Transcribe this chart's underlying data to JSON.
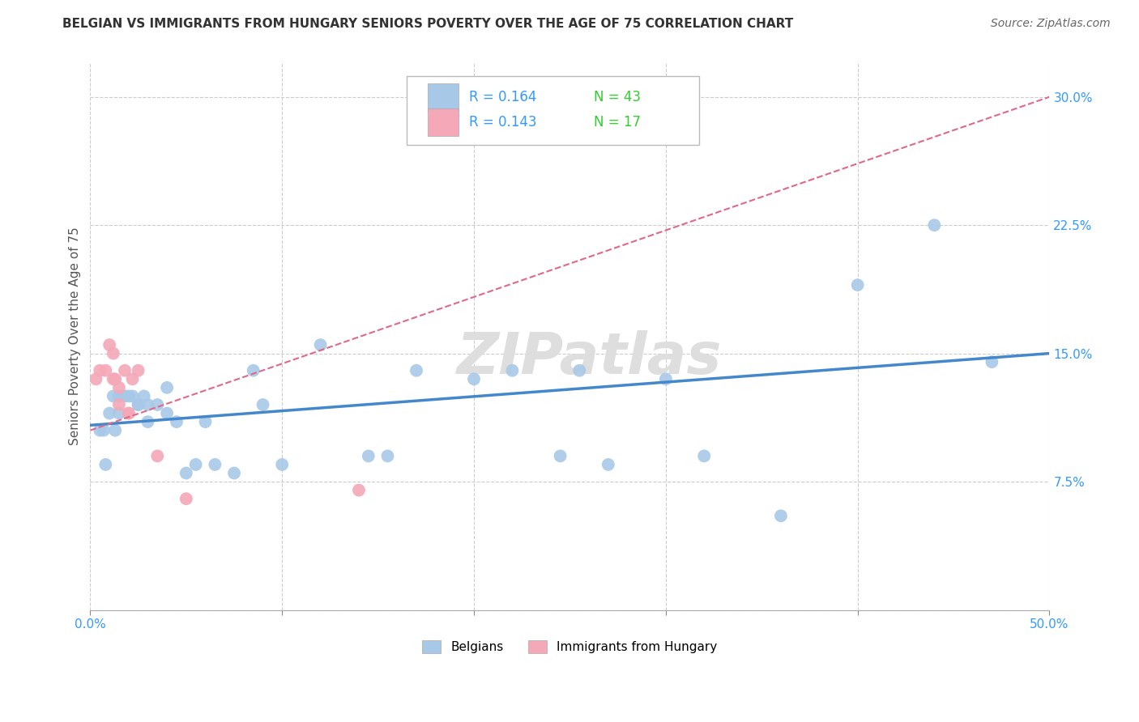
{
  "title": "BELGIAN VS IMMIGRANTS FROM HUNGARY SENIORS POVERTY OVER THE AGE OF 75 CORRELATION CHART",
  "source": "Source: ZipAtlas.com",
  "ylabel": "Seniors Poverty Over the Age of 75",
  "xlim": [
    0.0,
    0.5
  ],
  "ylim": [
    0.0,
    0.32
  ],
  "yticks": [
    0.0,
    0.075,
    0.15,
    0.225,
    0.3
  ],
  "ytick_labels": [
    "",
    "7.5%",
    "15.0%",
    "22.5%",
    "30.0%"
  ],
  "xticks": [
    0.0,
    0.1,
    0.2,
    0.3,
    0.4,
    0.5
  ],
  "xtick_labels": [
    "0.0%",
    "",
    "",
    "",
    "",
    "50.0%"
  ],
  "belgians_x": [
    0.005,
    0.007,
    0.008,
    0.01,
    0.012,
    0.013,
    0.015,
    0.015,
    0.018,
    0.02,
    0.022,
    0.025,
    0.025,
    0.028,
    0.03,
    0.03,
    0.035,
    0.04,
    0.04,
    0.045,
    0.05,
    0.055,
    0.06,
    0.065,
    0.075,
    0.085,
    0.09,
    0.1,
    0.12,
    0.145,
    0.155,
    0.17,
    0.2,
    0.22,
    0.245,
    0.255,
    0.27,
    0.3,
    0.32,
    0.36,
    0.4,
    0.44,
    0.47
  ],
  "belgians_y": [
    0.105,
    0.105,
    0.085,
    0.115,
    0.125,
    0.105,
    0.125,
    0.115,
    0.125,
    0.125,
    0.125,
    0.12,
    0.12,
    0.125,
    0.12,
    0.11,
    0.12,
    0.13,
    0.115,
    0.11,
    0.08,
    0.085,
    0.11,
    0.085,
    0.08,
    0.14,
    0.12,
    0.085,
    0.155,
    0.09,
    0.09,
    0.14,
    0.135,
    0.14,
    0.09,
    0.14,
    0.085,
    0.135,
    0.09,
    0.055,
    0.19,
    0.225,
    0.145
  ],
  "hungary_x": [
    0.003,
    0.005,
    0.008,
    0.01,
    0.012,
    0.012,
    0.013,
    0.015,
    0.015,
    0.018,
    0.02,
    0.02,
    0.022,
    0.025,
    0.035,
    0.05,
    0.14
  ],
  "hungary_y": [
    0.135,
    0.14,
    0.14,
    0.155,
    0.15,
    0.135,
    0.135,
    0.13,
    0.12,
    0.14,
    0.115,
    0.115,
    0.135,
    0.14,
    0.09,
    0.065,
    0.07
  ],
  "r_belgian": 0.164,
  "n_belgian": 43,
  "r_hungary": 0.143,
  "n_hungary": 17,
  "blue_color": "#A8C8E8",
  "pink_color": "#F4A8B8",
  "blue_line_color": "#4488CC",
  "pink_line_color": "#E06888",
  "grid_color": "#CCCCCC",
  "watermark_color": "#DEDEDE",
  "background_color": "#FFFFFF",
  "legend_r_color": "#3399FF",
  "legend_n_color": "#33CC33"
}
